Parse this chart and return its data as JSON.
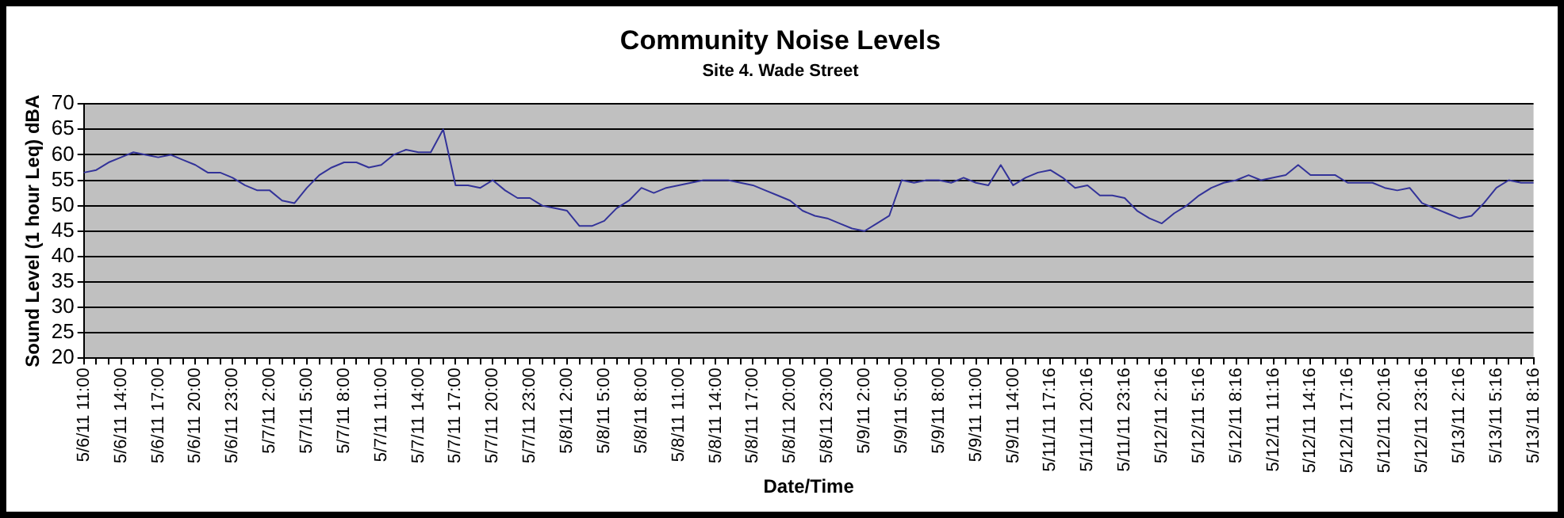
{
  "chart_data": {
    "type": "line",
    "title": "Community Noise Levels",
    "subtitle": "Site 4. Wade Street",
    "xlabel": "Date/Time",
    "ylabel": "Sound Level (1 hour Leq) dBA",
    "categories": [
      "5/6/11 11:00",
      null,
      null,
      "5/6/11 14:00",
      null,
      null,
      "5/6/11 17:00",
      null,
      null,
      "5/6/11 20:00",
      null,
      null,
      "5/6/11 23:00",
      null,
      null,
      "5/7/11 2:00",
      null,
      null,
      "5/7/11 5:00",
      null,
      null,
      "5/7/11 8:00",
      null,
      null,
      "5/7/11 11:00",
      null,
      null,
      "5/7/11 14:00",
      null,
      null,
      "5/7/11 17:00",
      null,
      null,
      "5/7/11 20:00",
      null,
      null,
      "5/7/11 23:00",
      null,
      null,
      "5/8/11 2:00",
      null,
      null,
      "5/8/11 5:00",
      null,
      null,
      "5/8/11 8:00",
      null,
      null,
      "5/8/11 11:00",
      null,
      null,
      "5/8/11 14:00",
      null,
      null,
      "5/8/11 17:00",
      null,
      null,
      "5/8/11 20:00",
      null,
      null,
      "5/8/11 23:00",
      null,
      null,
      "5/9/11 2:00",
      null,
      null,
      "5/9/11 5:00",
      null,
      null,
      "5/9/11 8:00",
      null,
      null,
      "5/9/11 11:00",
      null,
      null,
      "5/9/11 14:00",
      null,
      null,
      "5/11/11 17:16",
      null,
      null,
      "5/11/11 20:16",
      null,
      null,
      "5/11/11 23:16",
      null,
      null,
      "5/12/11 2:16",
      null,
      null,
      "5/12/11 5:16",
      null,
      null,
      "5/12/11 8:16",
      null,
      null,
      "5/12/11 11:16",
      null,
      null,
      "5/12/11 14:16",
      null,
      null,
      "5/12/11 17:16",
      null,
      null,
      "5/12/11 20:16",
      null,
      null,
      "5/12/11 23:16",
      null,
      null,
      "5/13/11 2:16",
      null,
      null,
      "5/13/11 5:16",
      null,
      null,
      "5/13/11 8:16"
    ],
    "series": [
      {
        "color": "#333399",
        "values": [
          56.5,
          57,
          58.5,
          59.5,
          60.5,
          60,
          59.5,
          60,
          59,
          58,
          56.5,
          56.5,
          55.5,
          54,
          53,
          53,
          51,
          50.5,
          53.5,
          56,
          57.5,
          58.5,
          58.5,
          57.5,
          58,
          60,
          61,
          60.5,
          60.5,
          65,
          54,
          54,
          53.5,
          55,
          53,
          51.5,
          51.5,
          50,
          49.5,
          49,
          46,
          46,
          47,
          49.5,
          51,
          53.5,
          52.5,
          53.5,
          54,
          54.5,
          55,
          55,
          55,
          54.5,
          54,
          53,
          52,
          51,
          49,
          48,
          47.5,
          46.5,
          45.5,
          45,
          46.5,
          48,
          55,
          54.5,
          55,
          55,
          54.5,
          55.5,
          54.5,
          54,
          58,
          54,
          55.5,
          56.5,
          57,
          55.5,
          53.5,
          54,
          52,
          52,
          51.5,
          49,
          47.5,
          46.5,
          48.5,
          50,
          52,
          53.5,
          54.5,
          55,
          56,
          55,
          55.5,
          56,
          58,
          56,
          56,
          56,
          54.5,
          54.5,
          54.5,
          53.5,
          53,
          53.5,
          50.5,
          49.5,
          48.5,
          47.5,
          48,
          50.5,
          53.5,
          55,
          54.5,
          54.5
        ]
      }
    ],
    "ylim": [
      20,
      70
    ],
    "yticks": [
      20,
      25,
      30,
      35,
      40,
      45,
      50,
      55,
      60,
      65,
      70
    ],
    "grid": "y",
    "legend": false,
    "marker": "none"
  }
}
